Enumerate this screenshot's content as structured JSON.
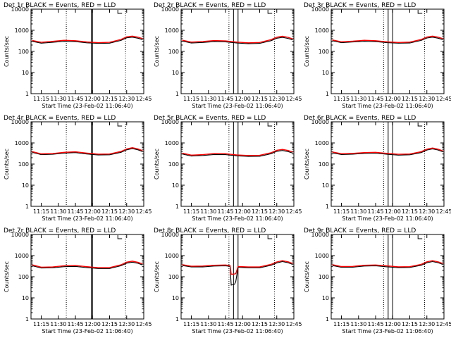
{
  "chart_data": [
    {
      "type": "line",
      "title": "Det 1r BLACK = Events, RED = LLD",
      "xlabel": "Start Time (23-Feb-02 11:06:40)",
      "ylabel": "Counts/sec",
      "yscale": "log",
      "ylim": [
        1,
        10000
      ],
      "xlim": [
        "11:06",
        "12:45"
      ],
      "xticks": [
        "11:15",
        "11:30",
        "11:45",
        "12:00",
        "12:15",
        "12:30",
        "12:45"
      ],
      "yticks": [
        "1",
        "10",
        "100",
        "1000",
        "10000"
      ],
      "x": [
        "11:07",
        "11:15",
        "11:25",
        "11:35",
        "11:45",
        "11:55",
        "12:05",
        "12:15",
        "12:25",
        "12:30",
        "12:35",
        "12:40",
        "12:44"
      ],
      "series": [
        {
          "name": "Events",
          "color": "#000000",
          "values": [
            300,
            245,
            270,
            300,
            290,
            255,
            240,
            245,
            330,
            440,
            470,
            420,
            360
          ]
        },
        {
          "name": "LLD",
          "color": "#ff0000",
          "values": [
            330,
            270,
            300,
            335,
            320,
            280,
            260,
            270,
            370,
            490,
            530,
            470,
            400
          ]
        }
      ],
      "markers": {
        "solid": [
          "11:59",
          "12:00"
        ],
        "dotted": [
          "11:37",
          "12:29"
        ]
      }
    },
    {
      "type": "line",
      "title": "Det 2r BLACK = Events, RED = LLD",
      "xlabel": "Start Time (23-Feb-02 11:06:40)",
      "ylabel": "Counts/sec",
      "yscale": "log",
      "ylim": [
        1,
        10000
      ],
      "xlim": [
        "11:06",
        "12:45"
      ],
      "xticks": [
        "11:15",
        "11:30",
        "11:45",
        "12:00",
        "12:15",
        "12:30",
        "12:45"
      ],
      "yticks": [
        "1",
        "10",
        "100",
        "1000",
        "10000"
      ],
      "x": [
        "11:07",
        "11:15",
        "11:25",
        "11:35",
        "11:45",
        "11:55",
        "12:05",
        "12:15",
        "12:25",
        "12:30",
        "12:35",
        "12:40",
        "12:44"
      ],
      "series": [
        {
          "name": "Events",
          "color": "#000000",
          "values": [
            310,
            250,
            265,
            290,
            285,
            250,
            230,
            240,
            320,
            420,
            460,
            410,
            350
          ]
        },
        {
          "name": "LLD",
          "color": "#ff0000",
          "values": [
            340,
            275,
            295,
            325,
            315,
            275,
            255,
            265,
            360,
            470,
            520,
            460,
            390
          ]
        }
      ],
      "markers": {
        "solid": [
          "11:52",
          "11:56"
        ],
        "dotted": [
          "11:48",
          "12:28"
        ]
      }
    },
    {
      "type": "line",
      "title": "Det 3r BLACK = Events, RED = LLD",
      "xlabel": "Start Time (23-Feb-02 11:06:40)",
      "ylabel": "Counts/sec",
      "yscale": "log",
      "ylim": [
        1,
        10000
      ],
      "xlim": [
        "11:06",
        "12:45"
      ],
      "xticks": [
        "11:15",
        "11:30",
        "11:45",
        "12:00",
        "12:15",
        "12:30",
        "12:45"
      ],
      "yticks": [
        "1",
        "10",
        "100",
        "1000",
        "10000"
      ],
      "x": [
        "11:07",
        "11:15",
        "11:25",
        "11:35",
        "11:45",
        "11:55",
        "12:05",
        "12:15",
        "12:25",
        "12:30",
        "12:35",
        "12:40",
        "12:44"
      ],
      "series": [
        {
          "name": "Events",
          "color": "#000000",
          "values": [
            320,
            260,
            280,
            300,
            290,
            260,
            245,
            250,
            330,
            430,
            470,
            420,
            360
          ]
        },
        {
          "name": "LLD",
          "color": "#ff0000",
          "values": [
            350,
            285,
            305,
            335,
            320,
            285,
            265,
            275,
            365,
            480,
            530,
            470,
            400
          ]
        }
      ],
      "markers": {
        "solid": [
          "11:56",
          "12:00"
        ],
        "dotted": [
          "11:52",
          "12:28"
        ]
      }
    },
    {
      "type": "line",
      "title": "Det 4r BLACK = Events, RED = LLD",
      "xlabel": "Start Time (23-Feb-02 11:06:40)",
      "ylabel": "Counts/sec",
      "yscale": "log",
      "ylim": [
        1,
        10000
      ],
      "xlim": [
        "11:06",
        "12:45"
      ],
      "xticks": [
        "11:15",
        "11:30",
        "11:45",
        "12:00",
        "12:15",
        "12:30",
        "12:45"
      ],
      "yticks": [
        "1",
        "10",
        "100",
        "1000",
        "10000"
      ],
      "x": [
        "11:07",
        "11:15",
        "11:25",
        "11:35",
        "11:45",
        "11:55",
        "12:05",
        "12:15",
        "12:25",
        "12:30",
        "12:35",
        "12:40",
        "12:44"
      ],
      "series": [
        {
          "name": "Events",
          "color": "#000000",
          "values": [
            360,
            280,
            290,
            330,
            350,
            300,
            270,
            275,
            360,
            470,
            540,
            470,
            390
          ]
        },
        {
          "name": "LLD",
          "color": "#ff0000",
          "values": [
            390,
            305,
            315,
            360,
            380,
            330,
            295,
            300,
            395,
            520,
            600,
            520,
            430
          ]
        }
      ],
      "markers": {
        "solid": [
          "11:59",
          "12:00"
        ],
        "dotted": [
          "11:37",
          "12:29"
        ]
      }
    },
    {
      "type": "line",
      "title": "Det 5r BLACK = Events, RED = LLD",
      "xlabel": "Start Time (23-Feb-02 11:06:40)",
      "ylabel": "Counts/sec",
      "yscale": "log",
      "ylim": [
        1,
        10000
      ],
      "xlim": [
        "11:06",
        "12:45"
      ],
      "xticks": [
        "11:15",
        "11:30",
        "11:45",
        "12:00",
        "12:15",
        "12:30",
        "12:45"
      ],
      "yticks": [
        "1",
        "10",
        "100",
        "1000",
        "10000"
      ],
      "x": [
        "11:07",
        "11:15",
        "11:25",
        "11:35",
        "11:45",
        "11:55",
        "12:05",
        "12:15",
        "12:25",
        "12:30",
        "12:35",
        "12:40",
        "12:44"
      ],
      "series": [
        {
          "name": "Events",
          "color": "#000000",
          "values": [
            300,
            240,
            255,
            285,
            280,
            245,
            230,
            235,
            310,
            400,
            440,
            390,
            330
          ]
        },
        {
          "name": "LLD",
          "color": "#ff0000",
          "values": [
            330,
            265,
            280,
            315,
            310,
            270,
            255,
            260,
            345,
            450,
            495,
            440,
            370
          ]
        }
      ],
      "markers": {
        "solid": [
          "11:52",
          "11:56"
        ],
        "dotted": [
          "11:48",
          "12:28"
        ]
      }
    },
    {
      "type": "line",
      "title": "Det 6r BLACK = Events, RED = LLD",
      "xlabel": "Start Time (23-Feb-02 11:06:40)",
      "ylabel": "Counts/sec",
      "yscale": "log",
      "ylim": [
        1,
        10000
      ],
      "xlim": [
        "11:06",
        "12:45"
      ],
      "xticks": [
        "11:15",
        "11:30",
        "11:45",
        "12:00",
        "12:15",
        "12:30",
        "12:45"
      ],
      "yticks": [
        "1",
        "10",
        "100",
        "1000",
        "10000"
      ],
      "x": [
        "11:07",
        "11:15",
        "11:25",
        "11:35",
        "11:45",
        "11:55",
        "12:05",
        "12:15",
        "12:25",
        "12:30",
        "12:35",
        "12:40",
        "12:44"
      ],
      "series": [
        {
          "name": "Events",
          "color": "#000000",
          "values": [
            340,
            285,
            295,
            320,
            330,
            290,
            265,
            275,
            350,
            460,
            520,
            460,
            380
          ]
        },
        {
          "name": "LLD",
          "color": "#ff0000",
          "values": [
            375,
            310,
            320,
            350,
            360,
            320,
            290,
            300,
            385,
            510,
            575,
            505,
            420
          ]
        }
      ],
      "markers": {
        "solid": [
          "11:56",
          "12:00"
        ],
        "dotted": [
          "11:52",
          "12:28"
        ]
      }
    },
    {
      "type": "line",
      "title": "Det 7r BLACK = Events, RED = LLD",
      "xlabel": "Start Time (23-Feb-02 11:06:40)",
      "ylabel": "Counts/sec",
      "yscale": "log",
      "ylim": [
        1,
        10000
      ],
      "xlim": [
        "11:06",
        "12:45"
      ],
      "xticks": [
        "11:15",
        "11:30",
        "11:45",
        "12:00",
        "12:15",
        "12:30",
        "12:45"
      ],
      "yticks": [
        "1",
        "10",
        "100",
        "1000",
        "10000"
      ],
      "x": [
        "11:07",
        "11:15",
        "11:25",
        "11:35",
        "11:45",
        "11:55",
        "12:05",
        "12:15",
        "12:25",
        "12:30",
        "12:35",
        "12:40",
        "12:44"
      ],
      "series": [
        {
          "name": "Events",
          "color": "#000000",
          "values": [
            330,
            260,
            265,
            300,
            310,
            270,
            245,
            245,
            330,
            440,
            490,
            430,
            360
          ]
        },
        {
          "name": "LLD",
          "color": "#ff0000",
          "values": [
            365,
            285,
            290,
            330,
            340,
            300,
            270,
            270,
            365,
            490,
            545,
            480,
            400
          ]
        }
      ],
      "markers": {
        "solid": [
          "11:59",
          "12:00"
        ],
        "dotted": [
          "11:37",
          "12:29"
        ]
      }
    },
    {
      "type": "line",
      "title": "Det 8r BLACK = Events, RED = LLD",
      "xlabel": "Start Time (23-Feb-02 11:06:40)",
      "ylabel": "Counts/sec",
      "yscale": "log",
      "ylim": [
        1,
        10000
      ],
      "xlim": [
        "11:06",
        "12:45"
      ],
      "xticks": [
        "11:15",
        "11:30",
        "11:45",
        "12:00",
        "12:15",
        "12:30",
        "12:45"
      ],
      "yticks": [
        "1",
        "10",
        "100",
        "1000",
        "10000"
      ],
      "x": [
        "11:07",
        "11:15",
        "11:25",
        "11:35",
        "11:45",
        "11:49",
        "11:50",
        "11:53",
        "11:54",
        "11:56",
        "12:05",
        "12:15",
        "12:25",
        "12:30",
        "12:35",
        "12:40",
        "12:44"
      ],
      "series": [
        {
          "name": "Events",
          "color": "#000000",
          "values": [
            340,
            290,
            290,
            320,
            330,
            310,
            40,
            45,
            60,
            280,
            265,
            265,
            350,
            450,
            520,
            460,
            380
          ]
        },
        {
          "name": "LLD",
          "color": "#ff0000",
          "values": [
            375,
            315,
            320,
            350,
            360,
            340,
            130,
            135,
            140,
            305,
            290,
            290,
            385,
            500,
            575,
            510,
            420
          ]
        }
      ],
      "markers": {
        "solid": [
          "11:52",
          "11:56"
        ],
        "dotted": [
          "11:48",
          "12:28"
        ]
      }
    },
    {
      "type": "line",
      "title": "Det 9r BLACK = Events, RED = LLD",
      "xlabel": "Start Time (23-Feb-02 11:06:40)",
      "ylabel": "Counts/sec",
      "yscale": "log",
      "ylim": [
        1,
        10000
      ],
      "xlim": [
        "11:06",
        "12:45"
      ],
      "xticks": [
        "11:15",
        "11:30",
        "11:45",
        "12:00",
        "12:15",
        "12:30",
        "12:45"
      ],
      "yticks": [
        "1",
        "10",
        "100",
        "1000",
        "10000"
      ],
      "x": [
        "11:07",
        "11:15",
        "11:25",
        "11:35",
        "11:45",
        "11:55",
        "12:05",
        "12:15",
        "12:25",
        "12:30",
        "12:35",
        "12:40",
        "12:44"
      ],
      "series": [
        {
          "name": "Events",
          "color": "#000000",
          "values": [
            340,
            280,
            285,
            320,
            330,
            295,
            270,
            275,
            350,
            460,
            520,
            460,
            380
          ]
        },
        {
          "name": "LLD",
          "color": "#ff0000",
          "values": [
            375,
            305,
            310,
            350,
            360,
            325,
            295,
            300,
            385,
            510,
            575,
            505,
            420
          ]
        }
      ],
      "markers": {
        "solid": [
          "11:56",
          "12:00"
        ],
        "dotted": [
          "11:52",
          "12:28"
        ]
      }
    }
  ]
}
